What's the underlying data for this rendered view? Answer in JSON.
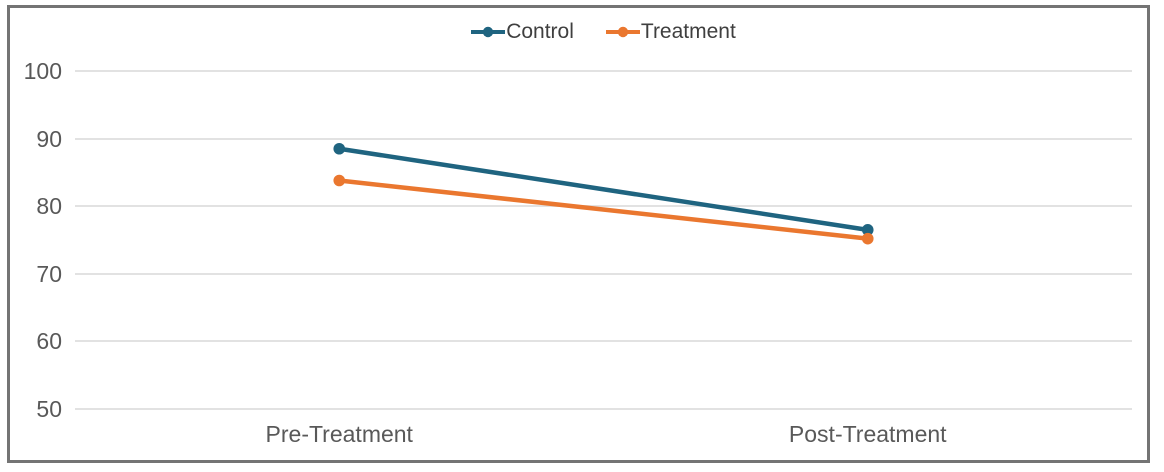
{
  "chart_data": {
    "type": "line",
    "title": "",
    "xlabel": "",
    "ylabel": "",
    "categories": [
      "Pre-Treatment",
      "Post-Treatment"
    ],
    "series": [
      {
        "name": "Control",
        "color": "#1F6480",
        "marker": "circle",
        "values": [
          88.5,
          76.5
        ]
      },
      {
        "name": "Treatment",
        "color": "#EA772F",
        "marker": "circle",
        "values": [
          83.8,
          75.2
        ]
      }
    ],
    "ylim": [
      50,
      100
    ],
    "yticks": [
      100,
      90,
      80,
      70,
      60,
      50
    ],
    "grid": true,
    "legend_position": "top-center"
  },
  "styles": {
    "grid_color": "#E2E2E2",
    "tick_label_color": "#595959",
    "legend_text_color": "#3F3F3F",
    "frame_border_color": "#747474",
    "background": "#FFFFFF"
  }
}
